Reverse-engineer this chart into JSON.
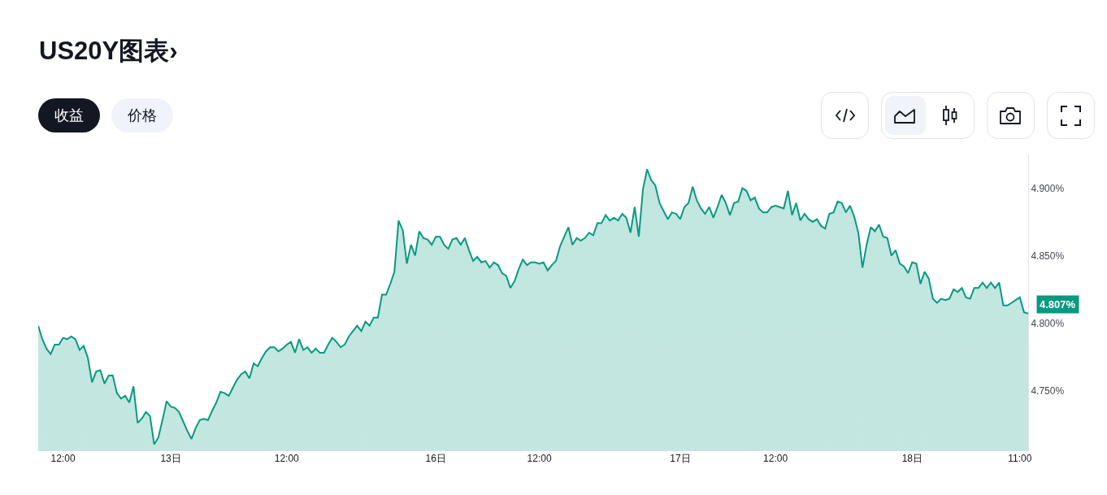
{
  "chart_data": {
    "type": "area",
    "title": "US20Y图表›",
    "categories": [
      null,
      null,
      null,
      null,
      null,
      null,
      "12:00",
      null,
      null,
      null,
      null,
      null,
      null,
      null,
      null,
      null,
      null,
      null,
      null,
      null,
      null,
      null,
      null,
      null,
      null,
      null,
      null,
      null,
      null,
      null,
      null,
      null,
      "13日",
      null,
      null,
      null,
      null,
      null,
      null,
      null,
      null,
      null,
      null,
      null,
      null,
      null,
      null,
      null,
      null,
      null,
      null,
      null,
      null,
      null,
      null,
      null,
      null,
      null,
      null,
      null,
      "12:00",
      null,
      null,
      null,
      null,
      null,
      null,
      null,
      null,
      null,
      null,
      null,
      null,
      null,
      null,
      null,
      null,
      null,
      null,
      null,
      null,
      null,
      null,
      null,
      null,
      null,
      null,
      null,
      null,
      null,
      null,
      null,
      null,
      null,
      null,
      null,
      "16日",
      null,
      null,
      null,
      null,
      null,
      null,
      null,
      null,
      null,
      null,
      null,
      null,
      null,
      null,
      null,
      null,
      null,
      null,
      null,
      null,
      null,
      null,
      null,
      null,
      "12:00",
      null,
      null,
      null,
      null,
      null,
      null,
      null,
      null,
      null,
      null,
      null,
      null,
      null,
      null,
      null,
      null,
      null,
      null,
      null,
      null,
      null,
      null,
      null,
      null,
      null,
      null,
      null,
      null,
      null,
      null,
      null,
      null,
      null,
      "17日",
      null,
      null,
      null,
      null,
      null,
      null,
      null,
      null,
      null,
      null,
      null,
      null,
      null,
      null,
      null,
      null,
      null,
      null,
      null,
      null,
      null,
      null,
      "12:00",
      null,
      null,
      null,
      null,
      null,
      null,
      null,
      null,
      null,
      null,
      null,
      null,
      null,
      null,
      null,
      null,
      null,
      null,
      null,
      null,
      null,
      null,
      null,
      null,
      null,
      null,
      null,
      null,
      null,
      null,
      null,
      null,
      "18日",
      null,
      null,
      null,
      null,
      null,
      null,
      null,
      null,
      null,
      null,
      null,
      null,
      null,
      null,
      null,
      null,
      null,
      null,
      null,
      null,
      null,
      null,
      null,
      null,
      null,
      "11:00",
      null,
      null
    ],
    "series": [
      {
        "color": "#089981",
        "values": [
          4.798,
          4.788,
          4.781,
          4.777,
          4.784,
          4.784,
          4.789,
          4.788,
          4.79,
          4.788,
          4.78,
          4.783,
          4.774,
          4.756,
          4.764,
          4.765,
          4.755,
          4.761,
          4.761,
          4.748,
          4.744,
          4.746,
          4.741,
          4.753,
          4.726,
          4.729,
          4.734,
          4.731,
          4.71,
          4.715,
          4.728,
          4.742,
          4.738,
          4.737,
          4.734,
          4.727,
          4.72,
          4.714,
          4.722,
          4.728,
          4.729,
          4.728,
          4.735,
          4.741,
          4.749,
          4.748,
          4.746,
          4.752,
          4.758,
          4.762,
          4.764,
          4.759,
          4.77,
          4.768,
          4.774,
          4.779,
          4.782,
          4.782,
          4.779,
          4.781,
          4.784,
          4.786,
          4.778,
          4.788,
          4.78,
          4.782,
          4.778,
          4.781,
          4.778,
          4.778,
          4.784,
          4.789,
          4.786,
          4.782,
          4.784,
          4.79,
          4.794,
          4.798,
          4.794,
          4.801,
          4.798,
          4.804,
          4.804,
          4.821,
          4.821,
          4.829,
          4.838,
          4.876,
          4.869,
          4.844,
          4.858,
          4.85,
          4.868,
          4.863,
          4.862,
          4.858,
          4.864,
          4.864,
          4.858,
          4.855,
          4.862,
          4.863,
          4.858,
          4.863,
          4.854,
          4.846,
          4.849,
          4.845,
          4.846,
          4.841,
          4.845,
          4.843,
          4.837,
          4.835,
          4.826,
          4.831,
          4.84,
          4.847,
          4.843,
          4.845,
          4.845,
          4.844,
          4.845,
          4.839,
          4.843,
          4.846,
          4.857,
          4.864,
          4.871,
          4.858,
          4.863,
          4.861,
          4.863,
          4.867,
          4.865,
          4.874,
          4.874,
          4.88,
          4.876,
          4.878,
          4.876,
          4.881,
          4.878,
          4.867,
          4.886,
          4.864,
          4.899,
          4.914,
          4.906,
          4.902,
          4.889,
          4.883,
          4.877,
          4.882,
          4.881,
          4.877,
          4.886,
          4.889,
          4.901,
          4.891,
          4.885,
          4.881,
          4.886,
          4.878,
          4.886,
          4.895,
          4.889,
          4.88,
          4.889,
          4.89,
          4.9,
          4.898,
          4.891,
          4.893,
          4.885,
          4.882,
          4.882,
          4.886,
          4.887,
          4.886,
          4.885,
          4.898,
          4.88,
          4.889,
          4.876,
          4.881,
          4.877,
          4.875,
          4.877,
          4.872,
          4.87,
          4.881,
          4.882,
          4.89,
          4.889,
          4.882,
          4.887,
          4.879,
          4.867,
          4.841,
          4.858,
          4.871,
          4.868,
          4.873,
          4.864,
          4.863,
          4.85,
          4.854,
          4.844,
          4.842,
          4.837,
          4.845,
          4.844,
          4.829,
          4.838,
          4.833,
          4.818,
          4.815,
          4.818,
          4.817,
          4.818,
          4.825,
          4.823,
          4.826,
          4.819,
          4.818,
          4.826,
          4.826,
          4.83,
          4.826,
          4.83,
          4.826,
          4.83,
          4.813,
          4.813,
          4.815,
          4.817,
          4.819,
          4.808,
          4.807
        ]
      }
    ],
    "ylim": [
      4.705,
      4.925
    ],
    "yticks": [
      {
        "value": 4.75,
        "label": "4.750%"
      },
      {
        "value": 4.8,
        "label": "4.800%"
      },
      {
        "value": 4.85,
        "label": "4.850%"
      },
      {
        "value": 4.9,
        "label": "4.900%"
      }
    ],
    "grid": false,
    "marker": "none",
    "line_style": "solid",
    "annotations": [
      "收益",
      "价格",
      "4.807%"
    ]
  }
}
